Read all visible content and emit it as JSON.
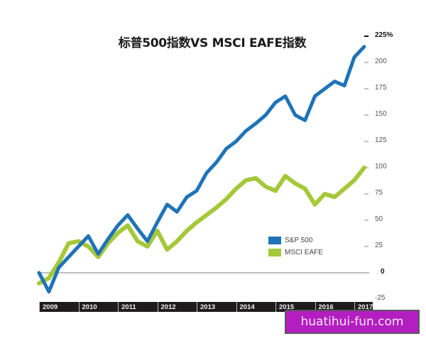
{
  "chart_data": {
    "type": "line",
    "title": "标普500指数VS MSCI EAFE指数",
    "xlabel": "",
    "ylabel": "",
    "ylim": [
      -25,
      225
    ],
    "y_ticks": [
      "225%",
      "200",
      "175",
      "150",
      "125",
      "100",
      "75",
      "50",
      "25",
      "0",
      "-25"
    ],
    "x_ticks": [
      "2009",
      "2010",
      "2011",
      "2012",
      "2013",
      "2014",
      "2015",
      "2016",
      "2017"
    ],
    "grid": false,
    "legend_position": "lower-right",
    "colors": {
      "sp500": "#1f73b7",
      "msci_eafe": "#a5c83a",
      "zero_line": "#888888",
      "axis_bar": "#1e1b1c"
    },
    "x": [
      2009.0,
      2009.25,
      2009.5,
      2009.75,
      2010.0,
      2010.25,
      2010.5,
      2010.75,
      2011.0,
      2011.25,
      2011.5,
      2011.75,
      2012.0,
      2012.25,
      2012.5,
      2012.75,
      2013.0,
      2013.25,
      2013.5,
      2013.75,
      2014.0,
      2014.25,
      2014.5,
      2014.75,
      2015.0,
      2015.25,
      2015.5,
      2015.75,
      2016.0,
      2016.25,
      2016.5,
      2016.75,
      2017.0,
      2017.25
    ],
    "series": [
      {
        "name": "S&P 500",
        "values": [
          0,
          -18,
          5,
          15,
          25,
          35,
          18,
          32,
          45,
          55,
          42,
          30,
          48,
          65,
          58,
          72,
          78,
          95,
          105,
          118,
          125,
          135,
          142,
          150,
          162,
          168,
          150,
          145,
          168,
          175,
          182,
          178,
          205,
          215
        ]
      },
      {
        "name": "MSCI EAFE",
        "values": [
          -10,
          -5,
          10,
          28,
          30,
          25,
          15,
          28,
          38,
          45,
          30,
          25,
          40,
          22,
          30,
          40,
          48,
          55,
          62,
          70,
          80,
          88,
          90,
          82,
          78,
          92,
          85,
          80,
          65,
          75,
          72,
          80,
          88,
          100
        ]
      }
    ]
  },
  "axis": {
    "y_labels": [
      {
        "text": "225%",
        "value": 225,
        "bold": true
      },
      {
        "text": "200",
        "value": 200
      },
      {
        "text": "175",
        "value": 175
      },
      {
        "text": "150",
        "value": 150
      },
      {
        "text": "125",
        "value": 125
      },
      {
        "text": "100",
        "value": 100
      },
      {
        "text": "75",
        "value": 75
      },
      {
        "text": "50",
        "value": 50
      },
      {
        "text": "25",
        "value": 25
      },
      {
        "text": "0",
        "value": 0,
        "bold": true
      },
      {
        "text": "-25",
        "value": -25
      }
    ],
    "x_labels": [
      "2009",
      "2010",
      "2011",
      "2012",
      "2013",
      "2014",
      "2015",
      "2016",
      "2017"
    ]
  },
  "legend": {
    "items": [
      {
        "label": "S&P 500",
        "color": "#1f73b7"
      },
      {
        "label": "MSCI EAFE",
        "color": "#a5c83a"
      }
    ]
  },
  "watermark": {
    "text": "huatihui-fun.com",
    "color": "#b31ec0"
  }
}
